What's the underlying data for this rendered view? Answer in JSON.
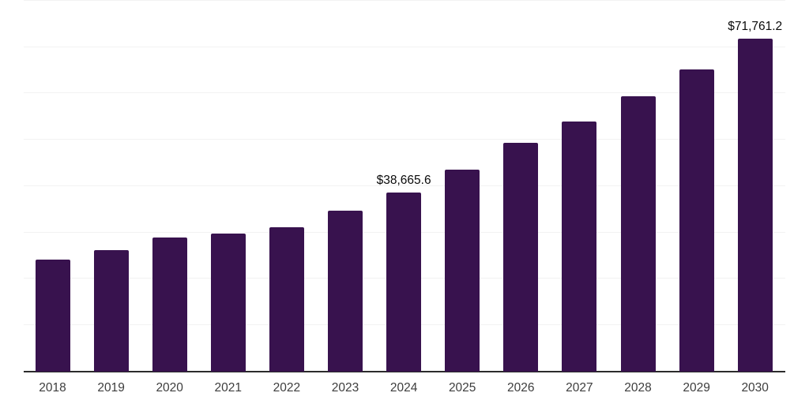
{
  "chart_data": {
    "type": "bar",
    "title": "",
    "xlabel": "",
    "ylabel": "",
    "categories": [
      "2018",
      "2019",
      "2020",
      "2021",
      "2022",
      "2023",
      "2024",
      "2025",
      "2026",
      "2027",
      "2028",
      "2029",
      "2030"
    ],
    "values": [
      24100,
      26250,
      28950,
      29750,
      31150,
      34650,
      38665.6,
      43550,
      49300,
      54000,
      59350,
      65150,
      71761.2
    ],
    "annotations": [
      {
        "category": "2024",
        "text": "$38,665.6"
      },
      {
        "category": "2030",
        "text": "$71,761.2"
      }
    ],
    "ylim": [
      0,
      80000
    ],
    "grid_step": 10000,
    "grid": "horizontal-only",
    "legend_position": "none",
    "y_tick_labels_visible": false,
    "colors": {
      "bar": "#38124E",
      "axis_line": "#2B2B2B",
      "gridline": "#F2F2F2",
      "annotation_text": "#0A0A0A",
      "x_tick_text": "#3D3D3D",
      "background": "#FFFFFF"
    }
  }
}
